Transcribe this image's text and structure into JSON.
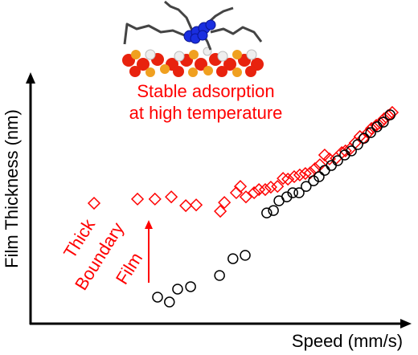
{
  "chart_data": {
    "type": "scatter",
    "x_label": "Speed (mm/s)",
    "y_label": "Film Thickness (nm)",
    "annotations": [
      {
        "lines": [
          "Stable adsorption",
          "at high temperature"
        ]
      },
      {
        "lines": [
          "Thick",
          "Boundary",
          "Film"
        ]
      }
    ],
    "xlim": [
      0,
      100
    ],
    "ylim": [
      0,
      100
    ],
    "series": [
      {
        "color": "#ff0000",
        "marker": "diamond",
        "x": [
          17.1,
          28.8,
          33.5,
          37.9,
          41.8,
          44.6,
          51.1,
          52.2,
          55.4,
          56.5,
          58.0,
          60.2,
          61.5,
          63.2,
          64.7,
          66.5,
          68.0,
          69.3,
          71.0,
          72.5,
          74.0,
          75.3,
          76.6,
          77.9,
          79.2,
          80.5,
          82.3,
          83.8,
          84.8,
          86.1,
          87.4,
          88.7,
          89.6,
          90.9,
          91.8,
          93.1,
          94.2,
          95.2,
          96.3,
          97.4
        ],
        "values": [
          49.5,
          51.2,
          51.2,
          52.1,
          48.5,
          48.8,
          46.2,
          49.8,
          53.8,
          56.4,
          52.1,
          53.8,
          55.1,
          55.1,
          56.1,
          56.4,
          59.7,
          59.4,
          60.4,
          61.1,
          61.7,
          62.0,
          63.7,
          65.3,
          69.3,
          67.7,
          68.0,
          70.3,
          71.0,
          71.9,
          74.3,
          76.9,
          76.2,
          78.5,
          80.2,
          81.5,
          82.5,
          84.2,
          85.5,
          86.8
        ]
      },
      {
        "color": "#000000",
        "marker": "circle",
        "x": [
          34.2,
          37.4,
          39.6,
          43.1,
          50.9,
          54.5,
          57.8,
          63.6,
          65.4,
          66.9,
          69.0,
          70.6,
          72.3,
          74.2,
          76.2,
          77.7,
          79.2,
          81.0,
          82.7,
          84.6,
          86.4,
          88.1,
          89.8,
          91.6,
          93.3,
          95.0,
          96.8
        ],
        "values": [
          10.9,
          8.9,
          14.2,
          15.2,
          19.8,
          26.7,
          28.1,
          45.5,
          46.5,
          50.5,
          52.1,
          53.8,
          53.8,
          56.4,
          58.7,
          60.4,
          63.0,
          65.0,
          67.0,
          69.3,
          71.0,
          73.6,
          76.2,
          78.5,
          80.9,
          82.8,
          85.8
        ]
      }
    ]
  }
}
